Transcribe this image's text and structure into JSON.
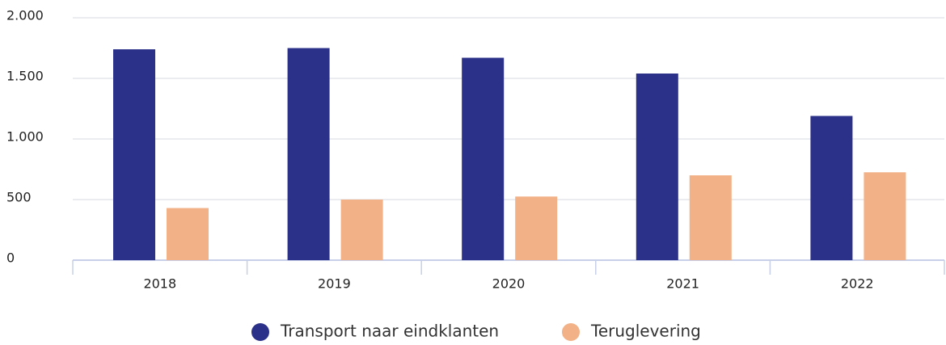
{
  "chart_data": {
    "type": "bar",
    "categories": [
      "2018",
      "2019",
      "2020",
      "2021",
      "2022"
    ],
    "series": [
      {
        "name": "Transport naar eindklanten",
        "color": "#2b3088",
        "values": [
          1740,
          1750,
          1670,
          1540,
          1190
        ]
      },
      {
        "name": "Teruglevering",
        "color": "#f2b186",
        "values": [
          430,
          500,
          525,
          700,
          725
        ]
      }
    ],
    "ylim": [
      0,
      2000
    ],
    "yticks": [
      0,
      500,
      {
        "value": 1000,
        "label": "1.000"
      },
      {
        "value": 1500,
        "label": "1.500"
      },
      {
        "value": 2000,
        "label": "2.000"
      }
    ],
    "grid": true,
    "legend": "bottom"
  }
}
